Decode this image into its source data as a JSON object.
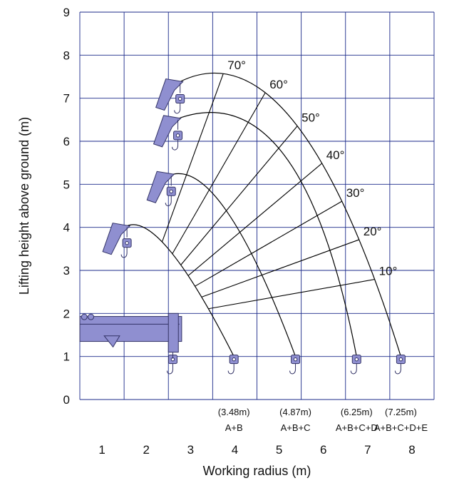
{
  "chart": {
    "xlabel": "Working radius (m)",
    "ylabel": "Lifting height above ground (m)",
    "x_ticks": [
      "1",
      "2",
      "3",
      "4",
      "5",
      "6",
      "7",
      "8"
    ],
    "y_ticks": [
      "0",
      "1",
      "2",
      "3",
      "4",
      "5",
      "6",
      "7",
      "8",
      "9"
    ]
  },
  "chart_data": {
    "type": "line",
    "xlabel": "Working radius (m)",
    "ylabel": "Lifting height above ground (m)",
    "xlim": [
      0,
      8
    ],
    "ylim": [
      0,
      9
    ],
    "grid": true,
    "boom_pivot": {
      "x": 1.2,
      "y": 1.8
    },
    "angles": [
      "10°",
      "20°",
      "30°",
      "40°",
      "50°",
      "60°",
      "70°"
    ],
    "angle_values": [
      10,
      20,
      30,
      40,
      50,
      60,
      70
    ],
    "series": [
      {
        "boom": "A+B",
        "max_radius": "(3.48m)",
        "x": [
          3.48,
          2.0,
          1.0
        ],
        "y": [
          1.0,
          3.5,
          4.0
        ]
      },
      {
        "boom": "A+B+C",
        "max_radius": "(4.87m)",
        "x": [
          4.87,
          3.3,
          2.0
        ],
        "y": [
          1.0,
          4.4,
          5.2
        ]
      },
      {
        "boom": "A+B+C+D",
        "max_radius": "(6.25m)",
        "x": [
          6.25,
          4.6,
          2.15
        ],
        "y": [
          1.0,
          5.7,
          6.5
        ]
      },
      {
        "boom": "A+B+C+D+E",
        "max_radius": "(7.25m)",
        "x": [
          7.25,
          4.8,
          2.2
        ],
        "y": [
          1.0,
          6.5,
          7.35
        ]
      }
    ]
  }
}
